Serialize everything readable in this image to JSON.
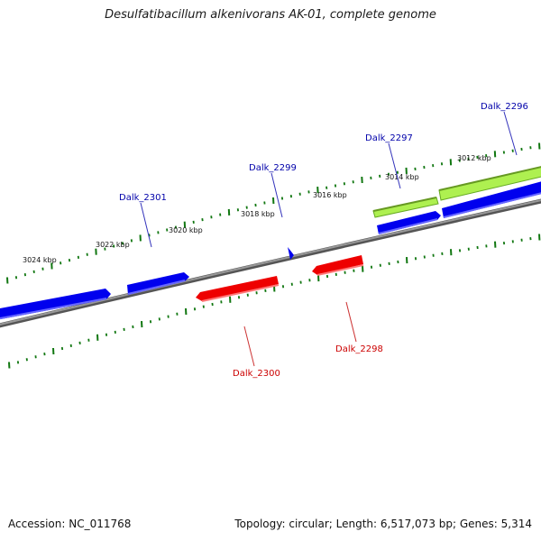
{
  "title": "Desulfatibacillum alkenivorans AK-01, complete genome",
  "footer": {
    "accession": "Accession: NC_011768",
    "summary": "Topology: circular; Length: 6,517,073 bp; Genes: 5,314"
  },
  "colors": {
    "forward_gene": "#0000ee",
    "reverse_gene": "#ee0000",
    "rna_gene": "#99ee33",
    "backbone": "#888888",
    "tick": "#117711",
    "forward_label": "#0000aa",
    "reverse_label": "#cc0000"
  },
  "tick_labels": [
    {
      "text": "3024 kbp",
      "kbp": 3024
    },
    {
      "text": "3022 kbp",
      "kbp": 3022
    },
    {
      "text": "3020 kbp",
      "kbp": 3020
    },
    {
      "text": "3018 kbp",
      "kbp": 3018
    },
    {
      "text": "3016 kbp",
      "kbp": 3016
    },
    {
      "text": "3014 kbp",
      "kbp": 3014
    },
    {
      "text": "3012 kbp",
      "kbp": 3012
    }
  ],
  "gene_labels": [
    {
      "text": "Dalk_2296",
      "strand": "forward"
    },
    {
      "text": "Dalk_2297",
      "strand": "forward"
    },
    {
      "text": "Dalk_2299",
      "strand": "forward"
    },
    {
      "text": "Dalk_2301",
      "strand": "forward"
    },
    {
      "text": "Dalk_2298",
      "strand": "reverse"
    },
    {
      "text": "Dalk_2300",
      "strand": "reverse"
    }
  ]
}
